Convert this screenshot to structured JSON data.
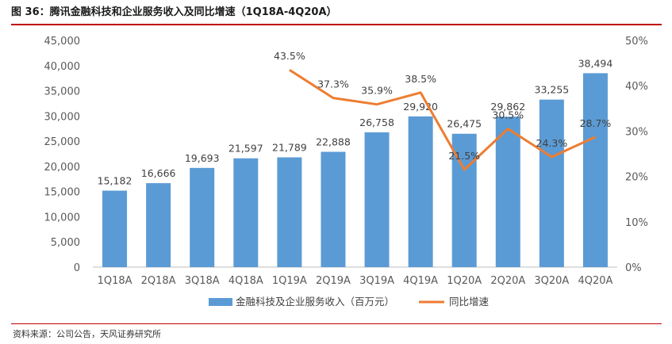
{
  "header": {
    "title": "图 36：腾讯金融科技和企业服务收入及同比增速（1Q18A-4Q20A）"
  },
  "footer": {
    "source": "资料来源：公司公告，天风证券研究所"
  },
  "colors": {
    "bar": "#5b9bd5",
    "line": "#ed7d31",
    "accent_rule": "#c00000"
  },
  "chart_data": {
    "type": "bar",
    "title": "腾讯金融科技和企业服务收入及同比增速（1Q18A-4Q20A）",
    "categories": [
      "1Q18A",
      "2Q18A",
      "3Q18A",
      "4Q18A",
      "1Q19A",
      "2Q19A",
      "3Q19A",
      "4Q19A",
      "1Q20A",
      "2Q20A",
      "3Q20A",
      "4Q20A"
    ],
    "series": [
      {
        "name": "金融科技及企业服务收入（百万元）",
        "kind": "bar",
        "axis": "left",
        "values": [
          15182,
          16666,
          19693,
          21597,
          21789,
          22888,
          26758,
          29920,
          26475,
          29862,
          33255,
          38494
        ],
        "labels": [
          "15,182",
          "16,666",
          "19,693",
          "21,597",
          "21,789",
          "22,888",
          "26,758",
          "29,920",
          "26,475",
          "29,862",
          "33,255",
          "38,494"
        ]
      },
      {
        "name": "同比增速",
        "kind": "line",
        "axis": "right",
        "values": [
          null,
          null,
          null,
          null,
          43.5,
          37.3,
          35.9,
          38.5,
          21.5,
          30.5,
          24.3,
          28.7
        ],
        "labels": [
          "",
          "",
          "",
          "",
          "43.5%",
          "37.3%",
          "35.9%",
          "38.5%",
          "21.5%",
          "30.5%",
          "24.3%",
          "28.7%"
        ]
      }
    ],
    "y_left": {
      "min": 0,
      "max": 45000,
      "step": 5000,
      "ticks": [
        "0",
        "5,000",
        "10,000",
        "15,000",
        "20,000",
        "25,000",
        "30,000",
        "35,000",
        "40,000",
        "45,000"
      ]
    },
    "y_right": {
      "min": 0,
      "max": 50,
      "step": 10,
      "ticks": [
        "0%",
        "10%",
        "20%",
        "30%",
        "40%",
        "50%"
      ]
    },
    "legend_position": "bottom-center",
    "grid": false
  }
}
